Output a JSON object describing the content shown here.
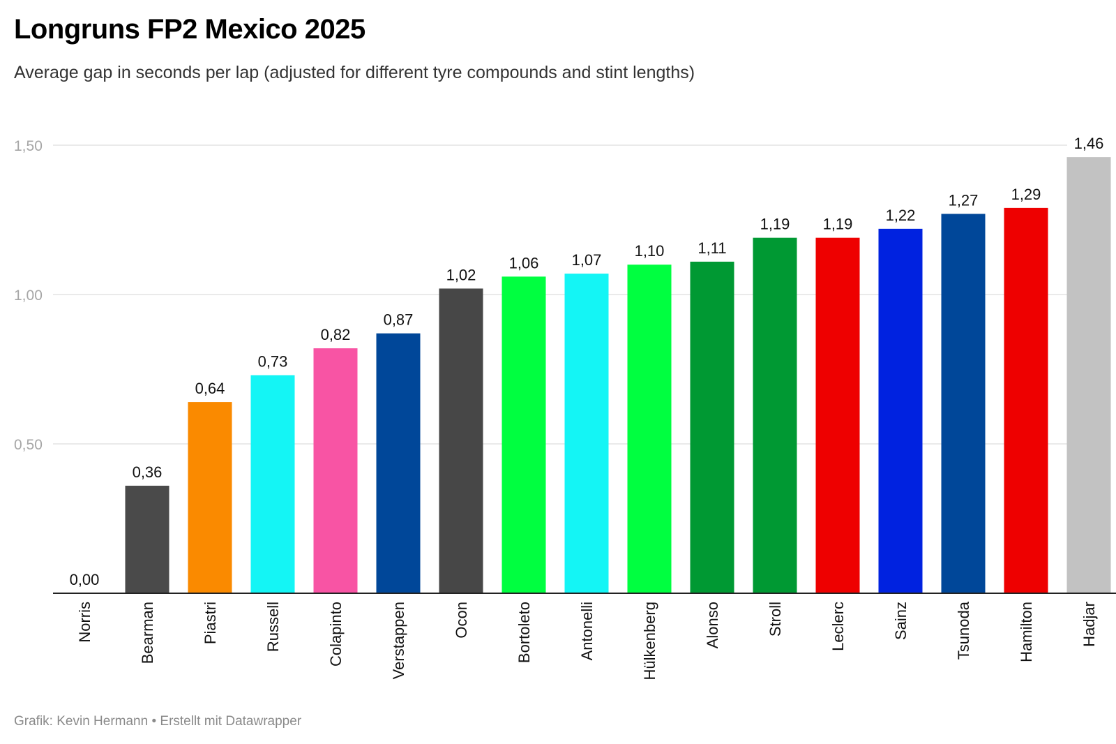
{
  "header": {
    "title": "Longruns FP2 Mexico 2025",
    "subtitle": "Average gap in seconds per lap (adjusted for different tyre compounds and stint lengths)"
  },
  "footer": {
    "credit": "Grafik: Kevin Hermann • Erstellt mit Datawrapper"
  },
  "chart_data": {
    "type": "bar",
    "title": "Longruns FP2 Mexico 2025",
    "subtitle": "Average gap in seconds per lap (adjusted for different tyre compounds and stint lengths)",
    "categories": [
      "Norris",
      "Bearman",
      "Piastri",
      "Russell",
      "Colapinto",
      "Verstappen",
      "Ocon",
      "Bortoleto",
      "Antonelli",
      "Hülkenberg",
      "Alonso",
      "Stroll",
      "Leclerc",
      "Sainz",
      "Tsunoda",
      "Hamilton",
      "Hadjar"
    ],
    "values": [
      0.0,
      0.36,
      0.64,
      0.73,
      0.82,
      0.87,
      1.02,
      1.06,
      1.07,
      1.1,
      1.11,
      1.19,
      1.19,
      1.22,
      1.27,
      1.29,
      1.46
    ],
    "value_labels": [
      "0,00",
      "0,36",
      "0,64",
      "0,73",
      "0,82",
      "0,87",
      "1,02",
      "1,06",
      "1,07",
      "1,10",
      "1,11",
      "1,19",
      "1,19",
      "1,22",
      "1,27",
      "1,29",
      "1,46"
    ],
    "colors": [
      "#ff8000",
      "#4a4a4a",
      "#fa8a00",
      "#14f5f5",
      "#f854a4",
      "#004799",
      "#474747",
      "#00ff40",
      "#14f5f5",
      "#00ff40",
      "#009933",
      "#009933",
      "#ee0000",
      "#0022e0",
      "#004799",
      "#ee0000",
      "#c2c2c2"
    ],
    "yticks": [
      0.5,
      1.0,
      1.5
    ],
    "ytick_labels": [
      "0,50",
      "1,00",
      "1,50"
    ],
    "ylim": [
      0,
      1.5
    ],
    "xlabel": "",
    "ylabel": "",
    "grid": true
  }
}
